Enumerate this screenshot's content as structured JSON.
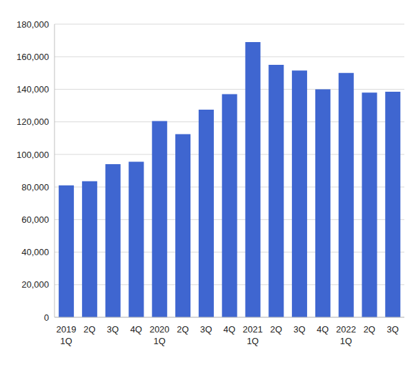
{
  "chart_data": {
    "type": "bar",
    "categories": [
      "2019 1Q",
      "2Q",
      "3Q",
      "4Q",
      "2020 1Q",
      "2Q",
      "3Q",
      "4Q",
      "2021 1Q",
      "2Q",
      "3Q",
      "4Q",
      "2022 1Q",
      "2Q",
      "3Q"
    ],
    "values": [
      81000,
      83500,
      94000,
      95500,
      120500,
      112500,
      127500,
      137000,
      169000,
      155000,
      151500,
      140000,
      150000,
      138000,
      138500
    ],
    "color": "#3f66d0",
    "ylim": [
      0,
      180000
    ],
    "yticks": [
      0,
      {
        "value": 20000,
        "label": "20,000"
      },
      {
        "value": 40000,
        "label": "40,000"
      },
      {
        "value": 60000,
        "label": "60,000"
      },
      {
        "value": 80000,
        "label": "80,000"
      },
      {
        "value": 100000,
        "label": "100,000"
      },
      {
        "value": 120000,
        "label": "120,000"
      },
      {
        "value": 140000,
        "label": "140,000"
      },
      {
        "value": 160000,
        "label": "160,000"
      },
      {
        "value": 180000,
        "label": "180,000"
      }
    ],
    "grid": true
  }
}
